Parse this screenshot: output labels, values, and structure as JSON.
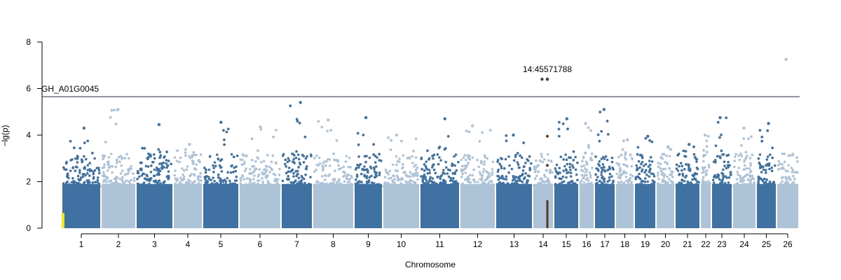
{
  "chart_data": {
    "type": "scatter",
    "subtype": "manhattan",
    "title": "",
    "xlabel": "Chromosome",
    "ylabel": "−lg(p)",
    "ylim": [
      0,
      8
    ],
    "yticks": [
      0,
      2,
      4,
      6,
      8
    ],
    "grid": false,
    "legend": "none",
    "colors": {
      "odd": "#3f72a3",
      "even": "#adc3d8",
      "threshold_line": "#1f2a5a",
      "highlight_dark": "#5a3a24",
      "highlight_yellow": "#f3e51c"
    },
    "threshold": {
      "value": 5.65,
      "label": "GH_A01G0045"
    },
    "chromosomes": [
      {
        "label": "1",
        "max": 4.3
      },
      {
        "label": "2",
        "max": 5.1
      },
      {
        "label": "3",
        "max": 4.45
      },
      {
        "label": "4",
        "max": 3.6
      },
      {
        "label": "5",
        "max": 4.55
      },
      {
        "label": "6",
        "max": 4.35
      },
      {
        "label": "7",
        "max": 5.4
      },
      {
        "label": "8",
        "max": 4.65
      },
      {
        "label": "9",
        "max": 4.75
      },
      {
        "label": "10",
        "max": 4.0
      },
      {
        "label": "11",
        "max": 4.7
      },
      {
        "label": "12",
        "max": 4.4
      },
      {
        "label": "13",
        "max": 4.0
      },
      {
        "label": "14",
        "max": 6.4
      },
      {
        "label": "15",
        "max": 4.7
      },
      {
        "label": "16",
        "max": 4.5
      },
      {
        "label": "17",
        "max": 5.1
      },
      {
        "label": "18",
        "max": 3.8
      },
      {
        "label": "19",
        "max": 3.95
      },
      {
        "label": "20",
        "max": 3.5
      },
      {
        "label": "21",
        "max": 3.6
      },
      {
        "label": "22",
        "max": 4.0
      },
      {
        "label": "23",
        "max": 4.75
      },
      {
        "label": "24",
        "max": 4.3
      },
      {
        "label": "25",
        "max": 4.5
      },
      {
        "label": "26",
        "max": 7.25
      }
    ],
    "annotations": [
      {
        "label": "14:45571788",
        "chromosome": "14",
        "y": 6.4
      }
    ]
  }
}
